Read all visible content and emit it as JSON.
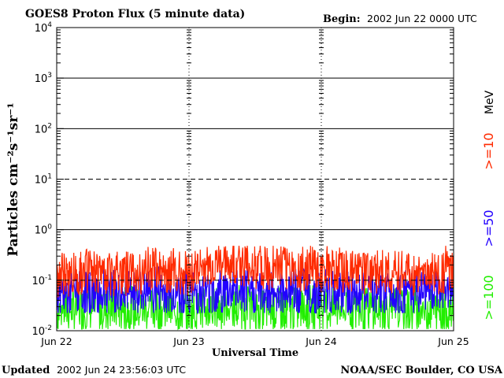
{
  "header": {
    "title": "GOES8 Proton Flux (5 minute data)",
    "begin_label": "Begin:",
    "begin_value": "2002 Jun 22 0000 UTC"
  },
  "footer": {
    "updated_label": "Updated",
    "updated_value": "2002 Jun 24 23:56:03 UTC",
    "credit": "NOAA/SEC Boulder, CO USA"
  },
  "legend": {
    "units": "MeV",
    "entries": [
      {
        "label": ">=10",
        "color": "#ff2a00"
      },
      {
        "label": ">=50",
        "color": "#2200ff"
      },
      {
        "label": ">=100",
        "color": "#22ee00"
      }
    ]
  },
  "chart_data": {
    "type": "line",
    "xlabel": "Universal Time",
    "ylabel": "Particles cm⁻²s⁻¹sr⁻¹",
    "ylog": true,
    "ylim": [
      0.01,
      10000
    ],
    "xlim": [
      "2002-06-22 00:00",
      "2002-06-25 00:00"
    ],
    "x_ticks": [
      "Jun 22",
      "Jun 23",
      "Jun 24",
      "Jun 25"
    ],
    "y_ticks": [
      {
        "base": "10",
        "exp": "-2",
        "value": 0.01
      },
      {
        "base": "10",
        "exp": "-1",
        "value": 0.1
      },
      {
        "base": "10",
        "exp": "0",
        "value": 1
      },
      {
        "base": "10",
        "exp": "1",
        "value": 10
      },
      {
        "base": "10",
        "exp": "2",
        "value": 100
      },
      {
        "base": "10",
        "exp": "3",
        "value": 1000
      },
      {
        "base": "10",
        "exp": "4",
        "value": 10000
      }
    ],
    "grid": "horizontal at each decade; dashed at 10^1 and 10^-1",
    "series": [
      {
        "name": ">=10 MeV",
        "color": "#ff2a00",
        "x": [
          "2002-06-22 00:00",
          "2002-06-22 06:00",
          "2002-06-22 12:00",
          "2002-06-22 18:00",
          "2002-06-23 00:00",
          "2002-06-23 06:00",
          "2002-06-23 12:00",
          "2002-06-23 18:00",
          "2002-06-24 00:00",
          "2002-06-24 06:00",
          "2002-06-24 12:00",
          "2002-06-24 18:00",
          "2002-06-25 00:00"
        ],
        "values": [
          0.12,
          0.15,
          0.13,
          0.16,
          0.14,
          0.2,
          0.18,
          0.17,
          0.16,
          0.15,
          0.14,
          0.13,
          0.14
        ],
        "typical_range": [
          0.05,
          0.3
        ]
      },
      {
        "name": ">=50 MeV",
        "color": "#2200ff",
        "x": [
          "2002-06-22 00:00",
          "2002-06-22 06:00",
          "2002-06-22 12:00",
          "2002-06-22 18:00",
          "2002-06-23 00:00",
          "2002-06-23 06:00",
          "2002-06-23 12:00",
          "2002-06-23 18:00",
          "2002-06-24 00:00",
          "2002-06-24 06:00",
          "2002-06-24 12:00",
          "2002-06-24 18:00",
          "2002-06-25 00:00"
        ],
        "values": [
          0.05,
          0.06,
          0.055,
          0.06,
          0.055,
          0.06,
          0.058,
          0.06,
          0.056,
          0.055,
          0.06,
          0.054,
          0.055
        ],
        "typical_range": [
          0.025,
          0.12
        ]
      },
      {
        "name": ">=100 MeV",
        "color": "#22ee00",
        "x": [
          "2002-06-22 00:00",
          "2002-06-22 06:00",
          "2002-06-22 12:00",
          "2002-06-22 18:00",
          "2002-06-23 00:00",
          "2002-06-23 06:00",
          "2002-06-23 12:00",
          "2002-06-23 18:00",
          "2002-06-24 00:00",
          "2002-06-24 06:00",
          "2002-06-24 12:00",
          "2002-06-24 18:00",
          "2002-06-25 00:00"
        ],
        "values": [
          0.025,
          0.028,
          0.026,
          0.027,
          0.025,
          0.028,
          0.027,
          0.026,
          0.027,
          0.026,
          0.028,
          0.025,
          0.026
        ],
        "typical_range": [
          0.012,
          0.05
        ]
      }
    ]
  }
}
